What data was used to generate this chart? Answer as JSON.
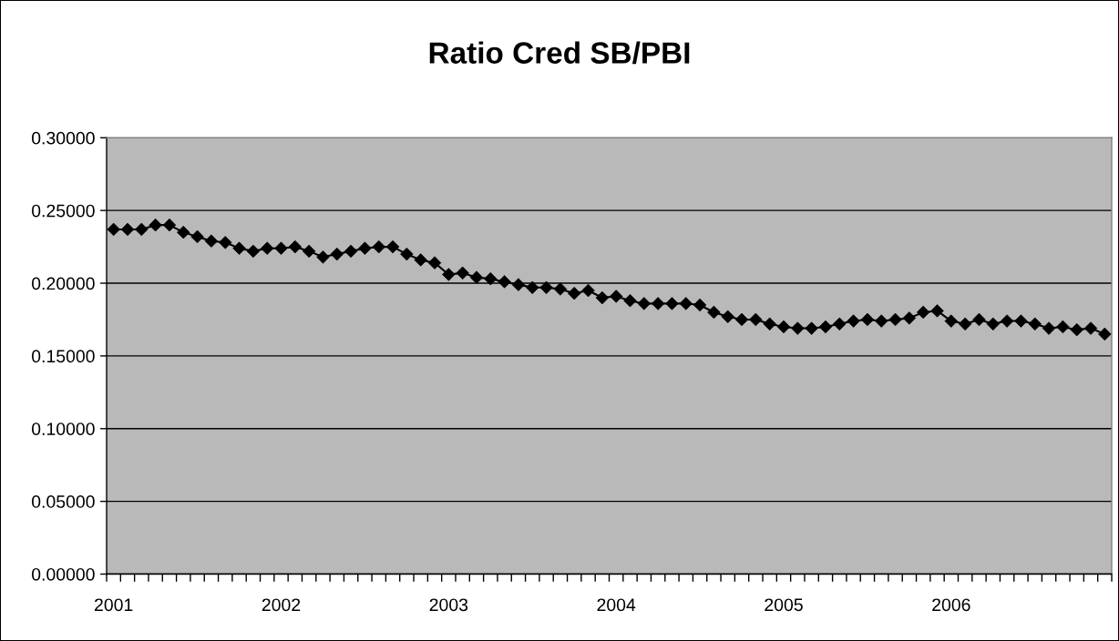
{
  "chart_data": {
    "type": "line",
    "title": "Ratio Cred SB/PBI",
    "categories": [
      "2001",
      null,
      null,
      null,
      null,
      null,
      null,
      null,
      null,
      null,
      null,
      null,
      "2002",
      null,
      null,
      null,
      null,
      null,
      null,
      null,
      null,
      null,
      null,
      null,
      "2003",
      null,
      null,
      null,
      null,
      null,
      null,
      null,
      null,
      null,
      null,
      null,
      "2004",
      null,
      null,
      null,
      null,
      null,
      null,
      null,
      null,
      null,
      null,
      null,
      "2005",
      null,
      null,
      null,
      null,
      null,
      null,
      null,
      null,
      null,
      null,
      null,
      "2006",
      null,
      null,
      null,
      null,
      null,
      null,
      null,
      null,
      null,
      null,
      null
    ],
    "series": [
      {
        "color": "#000000",
        "values": [
          0.237,
          0.237,
          0.237,
          0.24,
          0.24,
          0.235,
          0.232,
          0.229,
          0.228,
          0.224,
          0.222,
          0.224,
          0.224,
          0.225,
          0.222,
          0.218,
          0.22,
          0.222,
          0.224,
          0.225,
          0.225,
          0.22,
          0.216,
          0.214,
          0.206,
          0.207,
          0.204,
          0.203,
          0.201,
          0.199,
          0.197,
          0.197,
          0.196,
          0.193,
          0.195,
          0.19,
          0.191,
          0.188,
          0.186,
          0.186,
          0.186,
          0.186,
          0.185,
          0.18,
          0.177,
          0.175,
          0.175,
          0.172,
          0.17,
          0.169,
          0.169,
          0.17,
          0.172,
          0.174,
          0.175,
          0.174,
          0.175,
          0.176,
          0.18,
          0.181,
          0.174,
          0.172,
          0.175,
          0.172,
          0.174,
          0.174,
          0.172,
          0.169,
          0.17,
          0.168,
          0.169,
          0.165
        ]
      }
    ],
    "ylim": [
      0,
      0.3
    ],
    "yticks": [
      {
        "value": 0,
        "label": "0.00000"
      },
      {
        "value": 0.05,
        "label": "0.05000"
      },
      {
        "value": 0.1,
        "label": "0.10000"
      },
      {
        "value": 0.15,
        "label": "0.15000"
      },
      {
        "value": 0.2,
        "label": "0.20000"
      },
      {
        "value": 0.25,
        "label": "0.25000"
      },
      {
        "value": 0.3,
        "label": "0.30000"
      }
    ],
    "grid": "y",
    "marker": "diamond",
    "line_style": "solid"
  }
}
